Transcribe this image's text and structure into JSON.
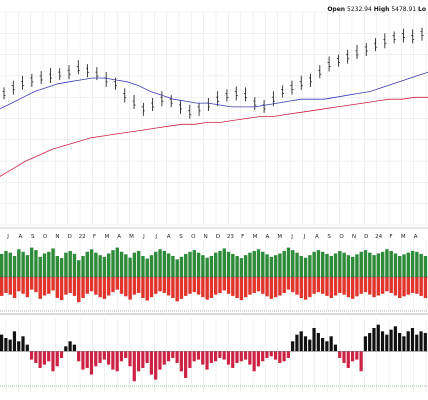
{
  "header": {
    "open_label": "Open",
    "open_value": "5232.94",
    "high_label": "High",
    "high_value": "5478.91",
    "low_label": "Lo"
  },
  "colors": {
    "price_bar": "#111111",
    "ma_fast": "#3b3bb3",
    "ma_slow": "#cc2244",
    "breadth_up": "#2e8b3a",
    "breadth_down": "#e0342c",
    "osc_pos": "#111111",
    "osc_neg": "#cc2244",
    "grid": "#e2e2e2"
  },
  "chart_data": [
    {
      "type": "line",
      "panel": "price",
      "note_scale": "relative price index 0-100",
      "x_axis_labels": [
        "J",
        "A",
        "S",
        "O",
        "N",
        "D",
        "22",
        "F",
        "M",
        "A",
        "M",
        "J",
        "J",
        "A",
        "S",
        "O",
        "N",
        "D",
        "23",
        "F",
        "M",
        "A",
        "M",
        "J",
        "J",
        "A",
        "S",
        "O",
        "N",
        "D",
        "24",
        "F",
        "M",
        "A"
      ],
      "series": [
        {
          "role": "price-ohlc",
          "values": [
            63,
            66,
            68,
            70,
            71,
            72,
            73,
            74,
            76,
            75,
            73,
            70,
            68,
            62,
            58,
            55,
            57,
            60,
            59,
            56,
            53,
            55,
            57,
            60,
            62,
            63,
            62,
            58,
            56,
            60,
            64,
            66,
            68,
            70,
            74,
            78,
            80,
            82,
            84,
            86,
            88,
            90,
            92,
            93,
            92,
            94
          ]
        },
        {
          "role": "ma-fast",
          "values": [
            55,
            58,
            61,
            64,
            66,
            68,
            69,
            70,
            71,
            71,
            70,
            69,
            67,
            64,
            62,
            60,
            59,
            58,
            58,
            57,
            56,
            56,
            56,
            57,
            58,
            59,
            60,
            60,
            60,
            61,
            62,
            63,
            64,
            66,
            68,
            70,
            72,
            74
          ]
        },
        {
          "role": "ma-slow",
          "values": [
            20,
            24,
            28,
            31,
            34,
            36,
            38,
            40,
            41,
            42,
            43,
            44,
            45,
            46,
            47,
            47,
            48,
            48,
            49,
            50,
            51,
            51,
            52,
            53,
            54,
            55,
            56,
            57,
            58,
            59,
            60,
            60,
            61,
            61
          ]
        }
      ]
    },
    {
      "type": "bar",
      "panel": "breadth",
      "series": [
        {
          "role": "advancing",
          "values": [
            0.55,
            0.62,
            0.58,
            0.5,
            0.66,
            0.6,
            0.52,
            0.7,
            0.64,
            0.48,
            0.56,
            0.6,
            0.68,
            0.5,
            0.45,
            0.58,
            0.62,
            0.55,
            0.4,
            0.5,
            0.6,
            0.66,
            0.58,
            0.52,
            0.48,
            0.56,
            0.64,
            0.7,
            0.6,
            0.54,
            0.46,
            0.58,
            0.62,
            0.5,
            0.44,
            0.52,
            0.6,
            0.66,
            0.62,
            0.56,
            0.5,
            0.42,
            0.48,
            0.55,
            0.6,
            0.64,
            0.58,
            0.52,
            0.46,
            0.5,
            0.58,
            0.62,
            0.68,
            0.6,
            0.55,
            0.5,
            0.45,
            0.52,
            0.58,
            0.62,
            0.66,
            0.6,
            0.54,
            0.48,
            0.52,
            0.56,
            0.62,
            0.7,
            0.64,
            0.58,
            0.5,
            0.46,
            0.52,
            0.6,
            0.64,
            0.6,
            0.55,
            0.5,
            0.56,
            0.62,
            0.58,
            0.52,
            0.48,
            0.54,
            0.6,
            0.64,
            0.58,
            0.52,
            0.56,
            0.6,
            0.66,
            0.62,
            0.56,
            0.5,
            0.54,
            0.58,
            0.62,
            0.6,
            0.55,
            0.5
          ]
        },
        {
          "role": "declining",
          "values": [
            0.45,
            0.38,
            0.42,
            0.5,
            0.34,
            0.4,
            0.48,
            0.3,
            0.36,
            0.52,
            0.44,
            0.4,
            0.32,
            0.5,
            0.55,
            0.42,
            0.38,
            0.45,
            0.6,
            0.5,
            0.4,
            0.34,
            0.42,
            0.48,
            0.52,
            0.44,
            0.36,
            0.3,
            0.4,
            0.46,
            0.54,
            0.42,
            0.38,
            0.5,
            0.56,
            0.48,
            0.4,
            0.34,
            0.38,
            0.44,
            0.5,
            0.58,
            0.52,
            0.45,
            0.4,
            0.36,
            0.42,
            0.48,
            0.54,
            0.5,
            0.42,
            0.38,
            0.32,
            0.4,
            0.45,
            0.5,
            0.55,
            0.48,
            0.42,
            0.38,
            0.34,
            0.4,
            0.46,
            0.52,
            0.48,
            0.44,
            0.38,
            0.3,
            0.36,
            0.42,
            0.5,
            0.54,
            0.48,
            0.4,
            0.36,
            0.4,
            0.45,
            0.5,
            0.44,
            0.38,
            0.42,
            0.48,
            0.52,
            0.46,
            0.4,
            0.36,
            0.42,
            0.48,
            0.44,
            0.4,
            0.34,
            0.38,
            0.44,
            0.5,
            0.46,
            0.42,
            0.38,
            0.4,
            0.45,
            0.5
          ]
        }
      ]
    },
    {
      "type": "bar",
      "panel": "oscillator",
      "series": [
        {
          "role": "oscillator",
          "values": [
            0.5,
            0.4,
            0.35,
            0.6,
            0.3,
            0.45,
            0.2,
            -0.25,
            -0.35,
            -0.5,
            -0.4,
            -0.3,
            -0.6,
            -0.45,
            -0.2,
            0.15,
            0.3,
            0.2,
            -0.3,
            -0.55,
            -0.5,
            -0.7,
            -0.45,
            -0.35,
            -0.25,
            -0.4,
            -0.55,
            -0.6,
            -0.3,
            -0.2,
            -0.45,
            -0.9,
            -0.6,
            -0.5,
            -0.35,
            -0.7,
            -0.85,
            -0.55,
            -0.4,
            -0.3,
            -0.2,
            -0.35,
            -0.6,
            -0.8,
            -0.5,
            -0.3,
            -0.25,
            -0.4,
            -0.55,
            -0.35,
            -0.3,
            -0.2,
            -0.25,
            -0.4,
            -0.5,
            -0.35,
            -0.3,
            -0.25,
            -0.4,
            -0.6,
            -0.45,
            -0.3,
            -0.2,
            -0.15,
            -0.25,
            -0.35,
            -0.3,
            -0.2,
            0.3,
            0.5,
            0.6,
            0.45,
            0.35,
            0.7,
            0.55,
            0.4,
            0.3,
            0.45,
            0.2,
            -0.2,
            -0.35,
            -0.5,
            -0.3,
            -0.25,
            -0.6,
            0.45,
            0.55,
            0.7,
            0.8,
            0.6,
            0.5,
            0.65,
            0.75,
            0.55,
            0.45,
            0.6,
            0.7,
            0.5,
            0.6,
            0.55
          ]
        }
      ]
    }
  ]
}
